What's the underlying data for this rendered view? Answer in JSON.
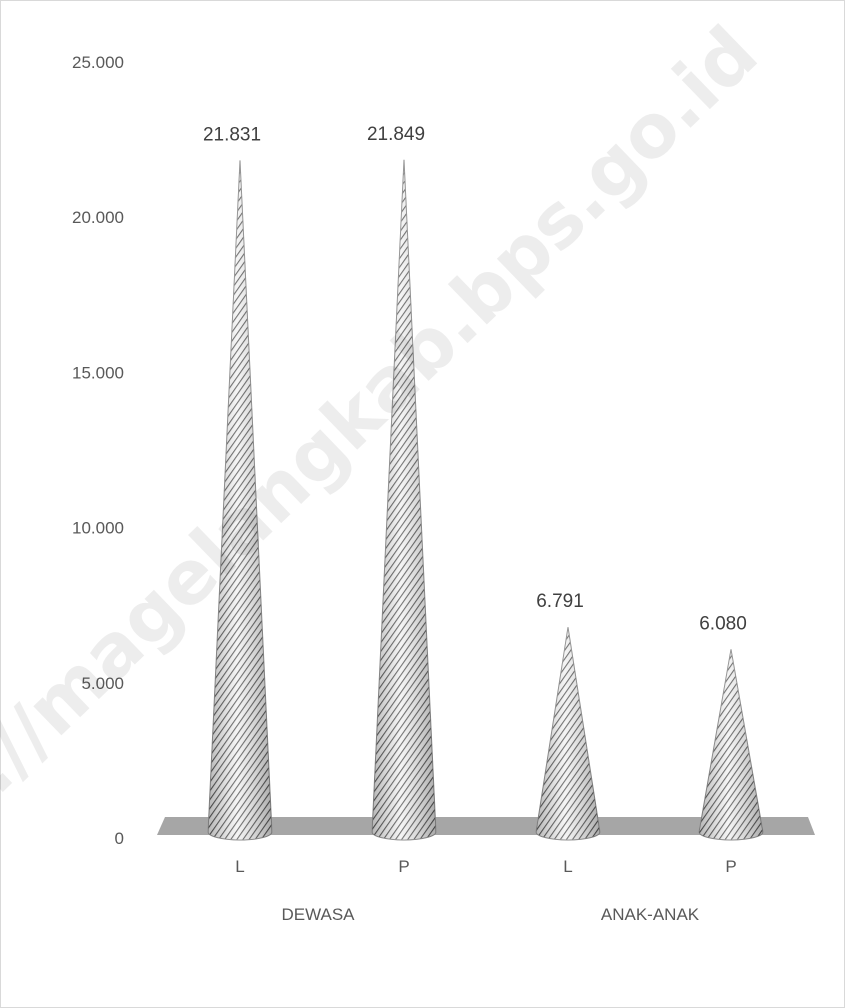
{
  "chart_data": {
    "type": "bar",
    "shape": "cone",
    "title": "",
    "xlabel": "",
    "ylabel": "",
    "ylim": [
      0,
      25000
    ],
    "yticks": [
      {
        "value": 0,
        "label": "0"
      },
      {
        "value": 5000,
        "label": "5.000"
      },
      {
        "value": 10000,
        "label": "10.000"
      },
      {
        "value": 15000,
        "label": "15.000"
      },
      {
        "value": 20000,
        "label": "20.000"
      },
      {
        "value": 25000,
        "label": "25.000"
      }
    ],
    "groups": [
      "DEWASA",
      "ANAK-ANAK"
    ],
    "categories": [
      "L",
      "P",
      "L",
      "P"
    ],
    "category_groups": [
      0,
      0,
      1,
      1
    ],
    "values": [
      21831,
      21849,
      6791,
      6080
    ],
    "value_labels": [
      "21.831",
      "21.849",
      "6.791",
      "6.080"
    ],
    "grid": false,
    "legend": "none",
    "colors": {
      "cone": "#7f7f7f",
      "floor": "#a6a6a6",
      "text": "#595959"
    }
  },
  "watermark": "https://magelangkab.bps.go.id"
}
